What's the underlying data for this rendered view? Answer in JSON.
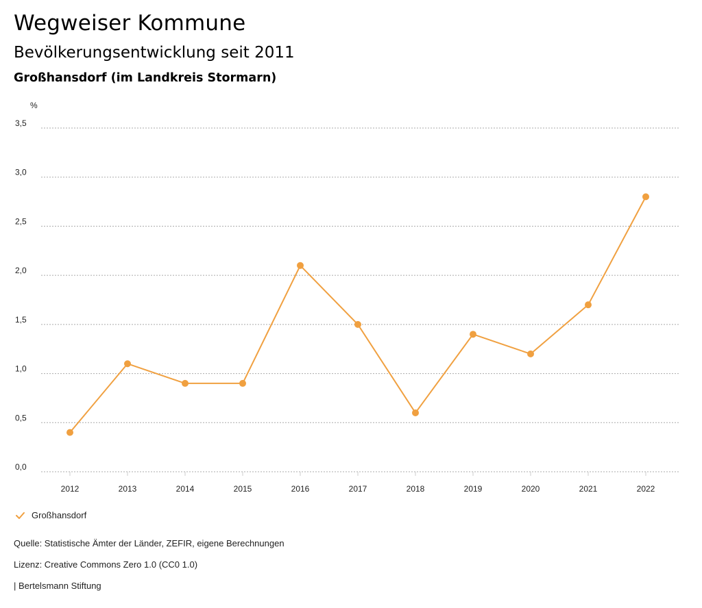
{
  "header": {
    "title": "Wegweiser Kommune",
    "subtitle": "Bevölkerungsentwicklung seit 2011",
    "region": "Großhansdorf (im Landkreis Stormarn)"
  },
  "colors": {
    "series": "#f0a040",
    "grid": "#aaaaaa"
  },
  "chart_data": {
    "type": "line",
    "title": "Bevölkerungsentwicklung seit 2011",
    "xlabel": "",
    "ylabel": "%",
    "ylim": [
      0,
      3.5
    ],
    "yticks": [
      0,
      0.5,
      1.0,
      1.5,
      2.0,
      2.5,
      3.0,
      3.5
    ],
    "ytick_labels": [
      "0,0",
      "0,5",
      "1,0",
      "1,5",
      "2,0",
      "2,5",
      "3,0",
      "3,5"
    ],
    "categories": [
      "2012",
      "2013",
      "2014",
      "2015",
      "2016",
      "2017",
      "2018",
      "2019",
      "2020",
      "2021",
      "2022"
    ],
    "series": [
      {
        "name": "Großhansdorf",
        "values": [
          0.4,
          1.1,
          0.9,
          0.9,
          2.1,
          1.5,
          0.6,
          1.4,
          1.2,
          1.7,
          2.8
        ]
      }
    ],
    "grid": true,
    "legend": "bottom-left"
  },
  "legend": {
    "label": "Großhansdorf"
  },
  "footer": {
    "source": "Quelle: Statistische Ämter der Länder, ZEFIR, eigene Berechnungen",
    "license": "Lizenz: Creative Commons Zero 1.0 (CC0 1.0)",
    "credit": "| Bertelsmann Stiftung"
  }
}
